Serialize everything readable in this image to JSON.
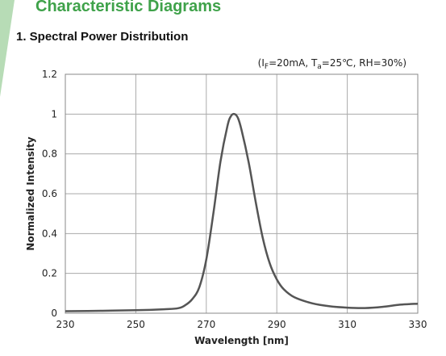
{
  "header": {
    "section_title": "Characteristic Diagrams",
    "subsection_title": "1. Spectral Power Distribution"
  },
  "colors": {
    "heading_green": "#3fa24a",
    "accent_bar": "#7cbf7a",
    "curve": "#555555",
    "grid": "#aaaaaa"
  },
  "chart_data": {
    "type": "line",
    "title": "",
    "conditions": "(I",
    "conditions_parts": [
      "(I",
      "F",
      "=20mA, T",
      "a",
      "=25℃, RH=30%)"
    ],
    "xlabel": "Wavelength [nm]",
    "ylabel": "Normalized Intensity",
    "xlim": [
      230,
      330
    ],
    "ylim": [
      0,
      1.2
    ],
    "x_ticks": [
      230,
      250,
      270,
      290,
      310,
      330
    ],
    "y_ticks": [
      0,
      0.2,
      0.4,
      0.6,
      0.8,
      1,
      1.2
    ],
    "x_tick_labels": [
      "230",
      "250",
      "270",
      "290",
      "310",
      "330"
    ],
    "y_tick_labels": [
      "0",
      "0.2",
      "0.4",
      "0.6",
      "0.8",
      "1",
      "1.2"
    ],
    "grid": true,
    "series": [
      {
        "x": [
          230,
          240,
          250,
          258,
          262,
          264,
          266,
          268,
          270,
          272,
          274,
          276,
          277,
          278,
          279,
          280,
          282,
          284,
          286,
          288,
          290,
          292,
          295,
          300,
          305,
          310,
          315,
          320,
          325,
          330
        ],
        "y": [
          0.01,
          0.012,
          0.015,
          0.02,
          0.025,
          0.04,
          0.07,
          0.13,
          0.27,
          0.5,
          0.76,
          0.94,
          0.99,
          1.0,
          0.98,
          0.92,
          0.76,
          0.56,
          0.38,
          0.25,
          0.17,
          0.12,
          0.08,
          0.05,
          0.035,
          0.028,
          0.026,
          0.032,
          0.043,
          0.048
        ]
      }
    ]
  }
}
